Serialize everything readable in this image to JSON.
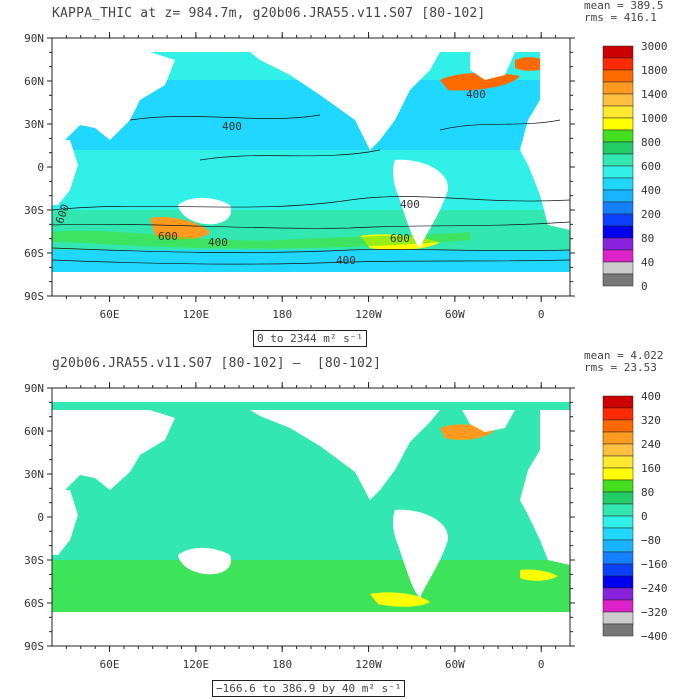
{
  "chart_data": [
    {
      "type": "heatmap",
      "title": "KAPPA_THIC at z= 984.7m, g20b06.JRA55.v11.S07 [80-102]",
      "stats": {
        "mean_label": "mean = 389.5",
        "rms_label": "rms = 416.1"
      },
      "range_label": "0 to 2344 m² s⁻¹",
      "x_ticks": [
        "60E",
        "120E",
        "180",
        "120W",
        "60W",
        "0"
      ],
      "y_ticks": [
        "90N",
        "60N",
        "30N",
        "0",
        "30S",
        "60S",
        "90S"
      ],
      "contour_labels": [
        "400",
        "400",
        "600",
        "600",
        "400",
        "600",
        "400",
        "400"
      ],
      "colorbar": {
        "levels": [
          "3000",
          "1800",
          "1400",
          "1000",
          "800",
          "600",
          "400",
          "200",
          "80",
          "40",
          "0"
        ],
        "colors": [
          "#cc0000",
          "#ff2a00",
          "#ff6a00",
          "#ff9a20",
          "#ffc040",
          "#ffe830",
          "#ffff00",
          "#44e020",
          "#22cc66",
          "#33e8b0",
          "#30f0e8",
          "#20d8ff",
          "#18b4ff",
          "#1480ff",
          "#0c40ff",
          "#0000ee",
          "#8822dd",
          "#dd22cc",
          "#cccccc",
          "#777777"
        ]
      },
      "dominant_value_range": [
        200,
        400
      ]
    },
    {
      "type": "heatmap",
      "title": "g20b06.JRA55.v11.S07 [80-102] –  [80-102]",
      "stats": {
        "mean_label": "mean = 4.022",
        "rms_label": "rms = 23.53"
      },
      "range_label": "−166.6 to 386.9 by 40 m² s⁻¹",
      "x_ticks": [
        "60E",
        "120E",
        "180",
        "120W",
        "60W",
        "0"
      ],
      "y_ticks": [
        "90N",
        "60N",
        "30N",
        "0",
        "30S",
        "60S",
        "90S"
      ],
      "colorbar": {
        "levels": [
          "400",
          "320",
          "240",
          "160",
          "80",
          "0",
          "−80",
          "−160",
          "−240",
          "−320",
          "−400"
        ],
        "colors": [
          "#cc0000",
          "#ff2a00",
          "#ff6a00",
          "#ff9a20",
          "#ffc040",
          "#ffe830",
          "#ffff00",
          "#44e020",
          "#22cc66",
          "#33e8b0",
          "#30f0e8",
          "#20d8ff",
          "#18b4ff",
          "#1480ff",
          "#0c40ff",
          "#0000ee",
          "#8822dd",
          "#dd22cc",
          "#cccccc",
          "#777777"
        ]
      },
      "dominant_value_range": [
        0,
        40
      ]
    }
  ]
}
